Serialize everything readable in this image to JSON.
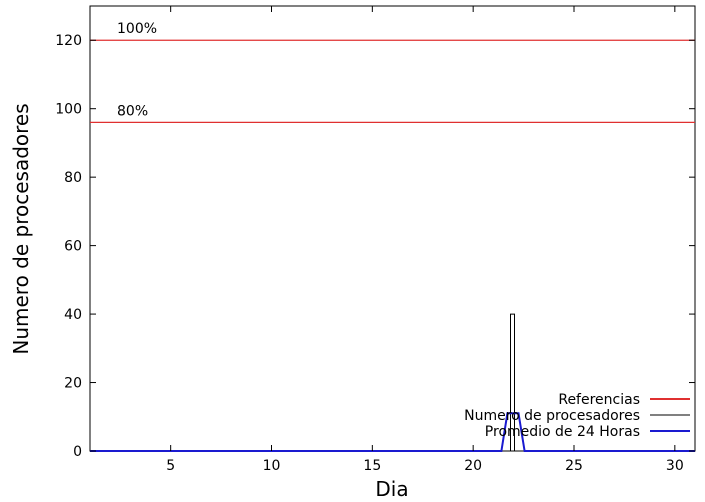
{
  "chart_data": {
    "type": "line",
    "xlabel": "Dia",
    "ylabel": "Numero de procesadores",
    "xlim": [
      1,
      31
    ],
    "ylim": [
      0,
      130
    ],
    "xticks": [
      5,
      10,
      15,
      20,
      25,
      30
    ],
    "yticks": [
      0,
      20,
      40,
      60,
      80,
      100,
      120
    ],
    "grid": false,
    "legend_position": "bottom-right",
    "reference_lines": [
      {
        "label": "100%",
        "y": 120
      },
      {
        "label": "80%",
        "y": 96
      }
    ],
    "series": [
      {
        "name": "Referencias",
        "color": "#e03030",
        "style": "horizontal-reference"
      },
      {
        "name": "Numero de procesadores",
        "color": "#000000",
        "x": [
          1,
          21.85,
          21.85,
          22.05,
          22.05,
          31
        ],
        "y": [
          0,
          0,
          40,
          40,
          0,
          0
        ]
      },
      {
        "name": "Promedio de 24 Horas",
        "color": "#1a1ad0",
        "x": [
          1,
          21.4,
          21.7,
          22.25,
          22.55,
          31
        ],
        "y": [
          0,
          0,
          11,
          11,
          0,
          0
        ]
      }
    ]
  }
}
